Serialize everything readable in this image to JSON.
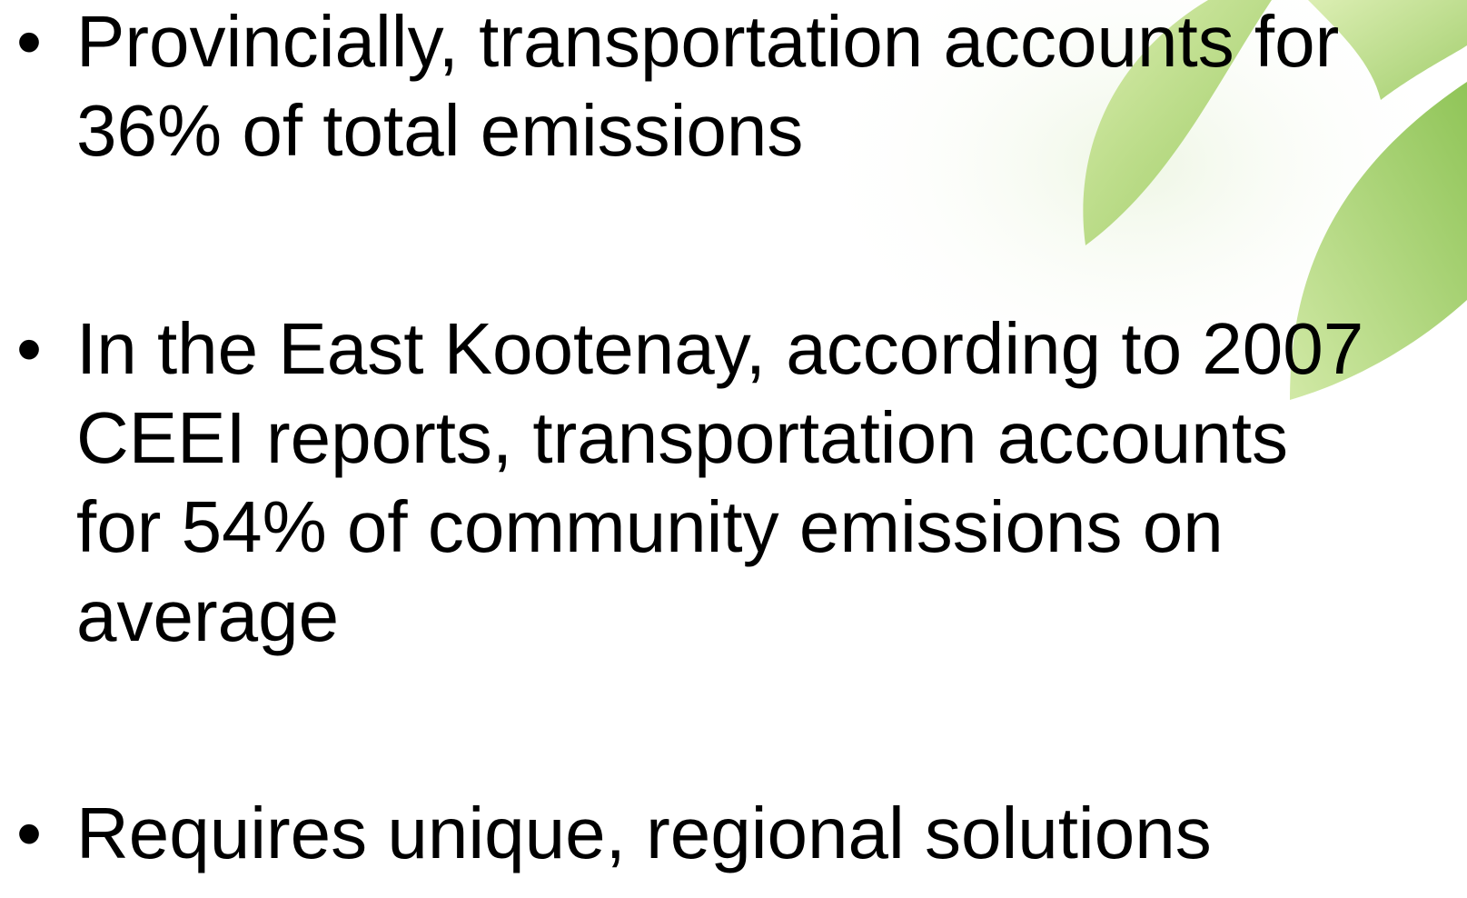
{
  "bullets": [
    {
      "lines": [
        "Provincially, transportation accounts for",
        "36% of total emissions"
      ]
    },
    {
      "lines": [
        "In the East Kootenay, according to 2007",
        "CEEI reports, transportation accounts",
        "for 54% of community emissions on",
        "average"
      ]
    },
    {
      "lines": [
        "Requires unique, regional solutions"
      ]
    }
  ]
}
